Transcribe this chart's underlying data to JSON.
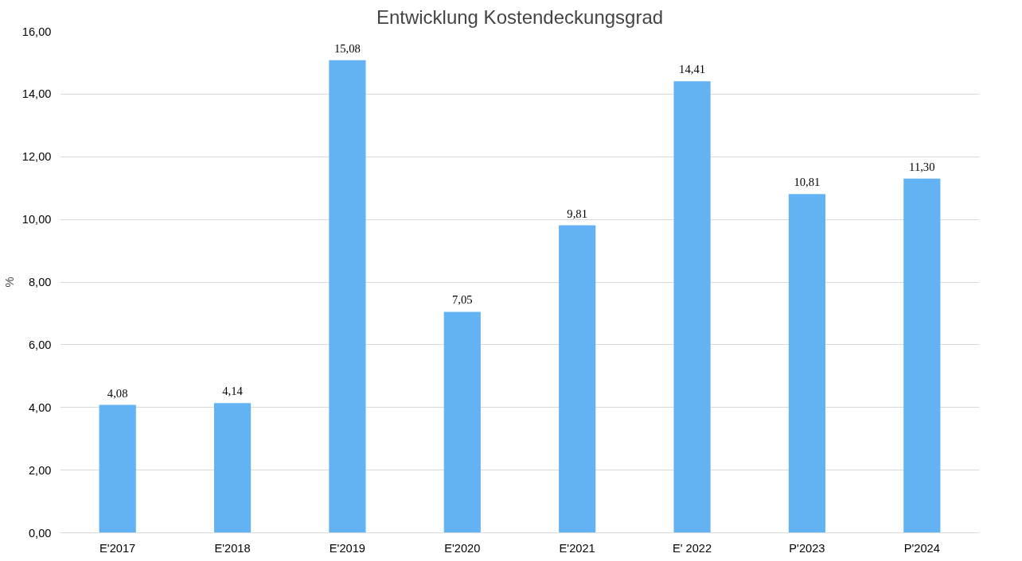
{
  "chart_data": {
    "type": "bar",
    "title": "Entwicklung Kostendeckungsgrad",
    "ylabel": "%",
    "categories": [
      "E'2017",
      "E'2018",
      "E'2019",
      "E'2020",
      "E'2021",
      "E' 2022",
      "P'2023",
      "P'2024"
    ],
    "values": [
      4.08,
      4.14,
      15.08,
      7.05,
      9.81,
      14.41,
      10.81,
      11.3
    ],
    "value_labels": [
      "4,08",
      "4,14",
      "15,08",
      "7,05",
      "9,81",
      "14,41",
      "10,81",
      "11,30"
    ],
    "color": "#63b3f4",
    "ylim": [
      0,
      16
    ],
    "yticks": [
      {
        "value": 0,
        "label": "0,00"
      },
      {
        "value": 2,
        "label": "2,00"
      },
      {
        "value": 4,
        "label": "4,00"
      },
      {
        "value": 6,
        "label": "6,00"
      },
      {
        "value": 8,
        "label": "8,00"
      },
      {
        "value": 10,
        "label": "10,00"
      },
      {
        "value": 12,
        "label": "12,00"
      },
      {
        "value": 14,
        "label": "14,00"
      },
      {
        "value": 16,
        "label": "16,00"
      }
    ],
    "grid": "y"
  }
}
